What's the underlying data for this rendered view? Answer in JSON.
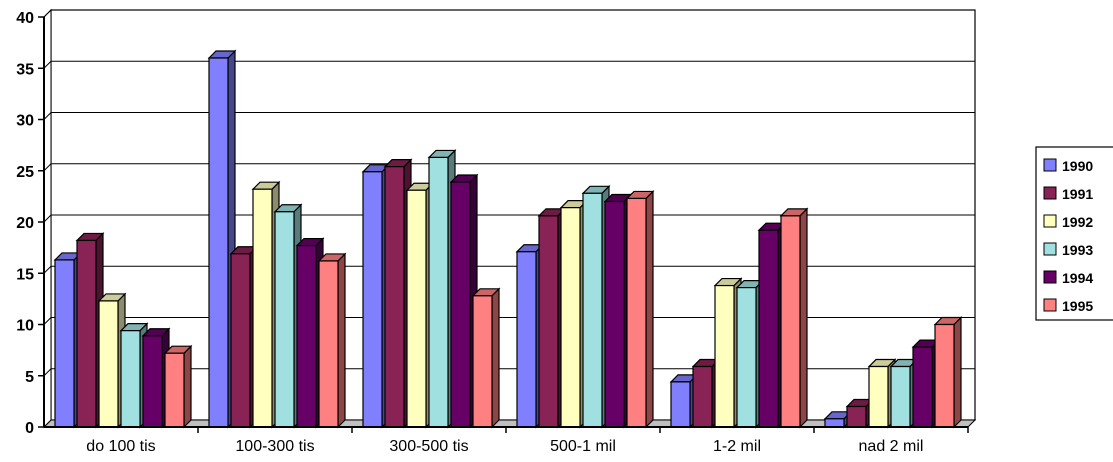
{
  "chart_data": {
    "type": "bar",
    "categories": [
      "do 100 tis",
      "100-300 tis",
      "300-500 tis",
      "500-1 mil",
      "1-2 mil",
      "nad 2 mil"
    ],
    "series": [
      {
        "name": "1990",
        "color": "#8080ff",
        "values": [
          16.3,
          36.0,
          24.9,
          17.1,
          4.4,
          0.8
        ]
      },
      {
        "name": "1991",
        "color": "#892255",
        "values": [
          18.2,
          16.9,
          25.4,
          20.6,
          5.9,
          2.0
        ]
      },
      {
        "name": "1992",
        "color": "#ffffc0",
        "values": [
          12.3,
          23.2,
          23.1,
          21.4,
          13.8,
          5.9
        ]
      },
      {
        "name": "1993",
        "color": "#a0e0e0",
        "values": [
          9.4,
          21.0,
          26.3,
          22.8,
          13.6,
          5.9
        ]
      },
      {
        "name": "1994",
        "color": "#660066",
        "values": [
          8.9,
          17.7,
          23.9,
          22.0,
          19.2,
          7.8
        ]
      },
      {
        "name": "1995",
        "color": "#ff8080",
        "values": [
          7.2,
          16.2,
          12.8,
          22.3,
          20.6,
          10.0
        ]
      }
    ],
    "yticks": [
      "0",
      "5",
      "10",
      "15",
      "20",
      "25",
      "30",
      "35",
      "40"
    ],
    "ylim": [
      0,
      40
    ],
    "grid": true,
    "legend": "right",
    "title": "",
    "xlabel": "",
    "ylabel": ""
  }
}
